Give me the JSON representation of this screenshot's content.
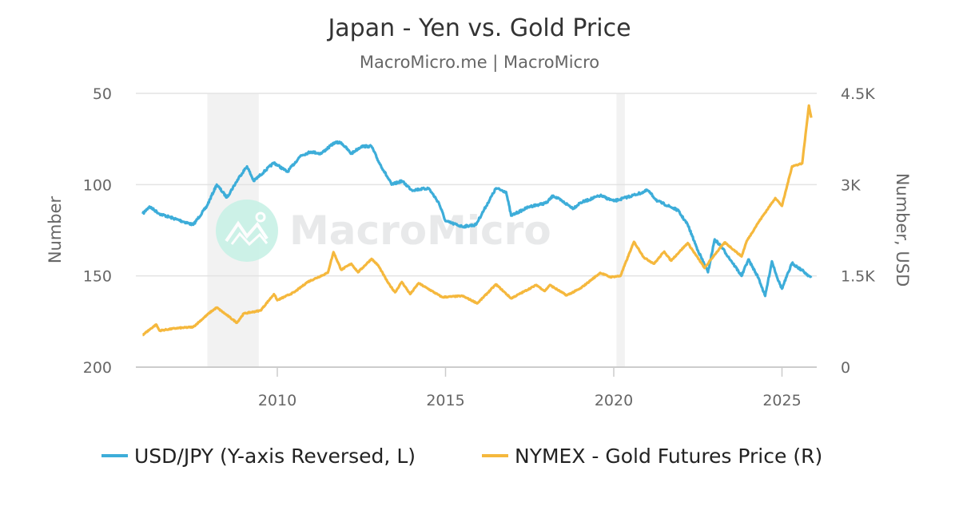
{
  "chart_data": {
    "type": "line",
    "title": "Japan - Yen vs. Gold Price",
    "subtitle": "MacroMicro.me | MacroMicro",
    "watermark": "MacroMicro",
    "ylabel_left": "Number",
    "ylabel_right": "Number, USD",
    "x_ticks": [
      2010,
      2015,
      2020,
      2025
    ],
    "xlim": [
      2005.6,
      2026.0
    ],
    "y_left": {
      "range": [
        50,
        200
      ],
      "reversed": true,
      "ticks": [
        "50",
        "100",
        "150",
        "200"
      ],
      "tick_values": [
        50,
        100,
        150,
        200
      ]
    },
    "y_right": {
      "range": [
        0,
        4500
      ],
      "ticks": [
        "0",
        "1.5K",
        "3K",
        "4.5K"
      ],
      "tick_values": [
        0,
        1500,
        3000,
        4500
      ]
    },
    "grid": true,
    "legend_placement": "bottom",
    "shaded_periods": [
      [
        2007.92,
        2009.45
      ],
      [
        2020.08,
        2020.33
      ]
    ],
    "series": [
      {
        "name": "USD/JPY (Y-axis Reversed, L)",
        "axis": "left",
        "color": "#3dadd9",
        "x": [
          2006.0,
          2006.2,
          2006.5,
          2007.0,
          2007.5,
          2007.9,
          2008.2,
          2008.5,
          2008.9,
          2009.1,
          2009.3,
          2009.6,
          2009.9,
          2010.3,
          2010.7,
          2011.0,
          2011.3,
          2011.7,
          2011.9,
          2012.2,
          2012.5,
          2012.8,
          2013.0,
          2013.4,
          2013.7,
          2014.0,
          2014.5,
          2014.8,
          2015.0,
          2015.5,
          2015.9,
          2016.2,
          2016.5,
          2016.8,
          2016.95,
          2017.5,
          2018.0,
          2018.2,
          2018.8,
          2019.0,
          2019.6,
          2020.0,
          2020.2,
          2020.9,
          2021.0,
          2021.3,
          2021.9,
          2022.2,
          2022.5,
          2022.8,
          2023.0,
          2023.2,
          2023.5,
          2023.8,
          2024.0,
          2024.3,
          2024.5,
          2024.7,
          2024.9,
          2025.0,
          2025.3,
          2025.6,
          2025.87
        ],
        "values": [
          116,
          112,
          116,
          119,
          122,
          112,
          100,
          107,
          95,
          90,
          98,
          93,
          88,
          93,
          84,
          82,
          83,
          77,
          77,
          83,
          79,
          79,
          87,
          100,
          98,
          103,
          102,
          110,
          120,
          123,
          122,
          112,
          102,
          104,
          117,
          112,
          110,
          106,
          113,
          110,
          106,
          109,
          108,
          104,
          103,
          109,
          114,
          122,
          136,
          148,
          130,
          134,
          142,
          150,
          141,
          151,
          161,
          142,
          153,
          157,
          143,
          147,
          151
        ]
      },
      {
        "name": "NYMEX - Gold Futures Price (R)",
        "axis": "right",
        "color": "#f5b83d",
        "x": [
          2006.0,
          2006.4,
          2006.5,
          2007.0,
          2007.5,
          2008.0,
          2008.2,
          2008.8,
          2009.0,
          2009.5,
          2009.9,
          2010.0,
          2010.5,
          2010.9,
          2011.5,
          2011.67,
          2011.9,
          2012.2,
          2012.4,
          2012.8,
          2013.0,
          2013.3,
          2013.5,
          2013.7,
          2013.95,
          2014.2,
          2014.9,
          2015.5,
          2015.95,
          2016.5,
          2016.95,
          2017.7,
          2017.95,
          2018.1,
          2018.6,
          2019.0,
          2019.6,
          2019.9,
          2020.2,
          2020.6,
          2020.9,
          2021.2,
          2021.5,
          2021.7,
          2022.2,
          2022.7,
          2023.0,
          2023.3,
          2023.8,
          2023.95,
          2024.3,
          2024.8,
          2025.0,
          2025.3,
          2025.6,
          2025.8,
          2025.87
        ],
        "values": [
          530,
          700,
          600,
          640,
          660,
          900,
          980,
          730,
          880,
          930,
          1200,
          1100,
          1230,
          1400,
          1550,
          1890,
          1600,
          1700,
          1560,
          1780,
          1670,
          1380,
          1230,
          1400,
          1200,
          1380,
          1150,
          1170,
          1050,
          1360,
          1130,
          1350,
          1250,
          1350,
          1180,
          1290,
          1550,
          1480,
          1500,
          2060,
          1800,
          1700,
          1900,
          1750,
          2040,
          1630,
          1850,
          2050,
          1820,
          2070,
          2380,
          2780,
          2650,
          3300,
          3350,
          4300,
          4100
        ]
      }
    ]
  }
}
